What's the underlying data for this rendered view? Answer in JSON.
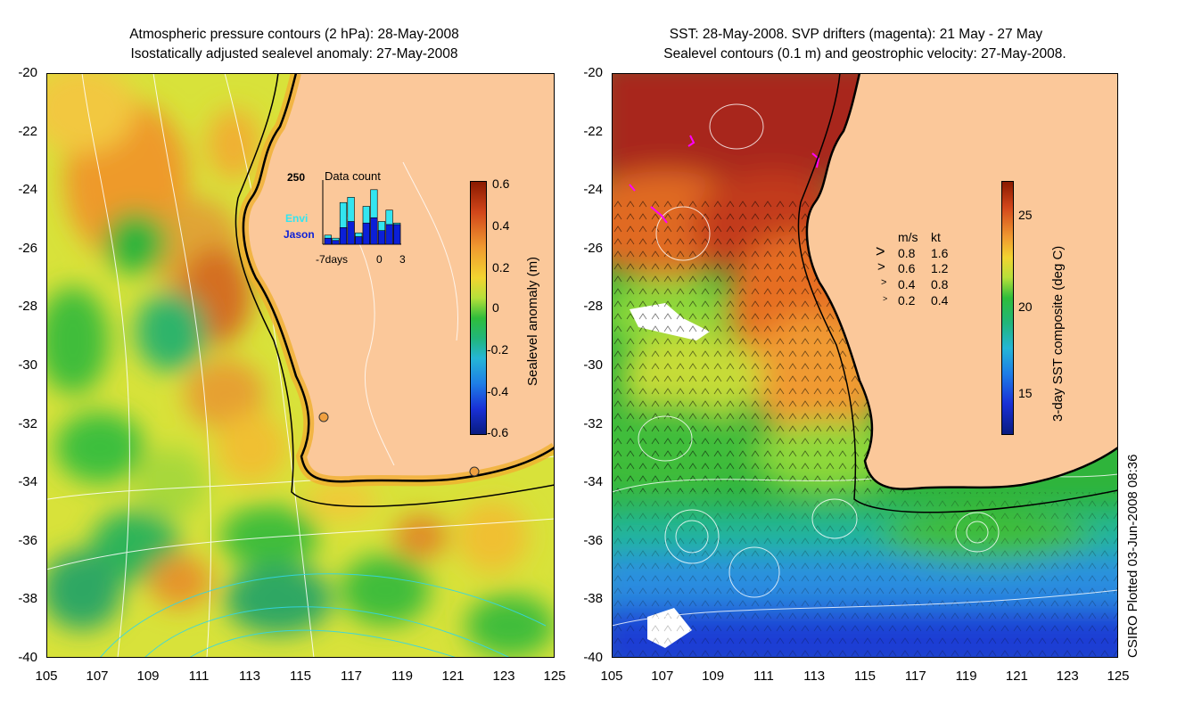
{
  "left_panel": {
    "title_line1": "Atmospheric pressure contours (2 hPa): 28-May-2008",
    "title_line2": "Isostatically adjusted sealevel anomaly: 27-May-2008",
    "colorbar": {
      "label": "Sealevel anomaly (m)",
      "ticks": [
        "0.6",
        "0.4",
        "0.2",
        "0",
        "-0.2",
        "-0.4",
        "-0.6"
      ]
    },
    "inset": {
      "title": "Data count",
      "max_label": "250",
      "series_envi": "Envi",
      "series_jason": "Jason",
      "xlabel_left": "-7days",
      "xlabel_mid": "0",
      "xlabel_right": "3"
    }
  },
  "right_panel": {
    "title_line1": "SST: 28-May-2008. SVP drifters (magenta): 21 May - 27 May",
    "title_line2": "Sealevel contours (0.1 m) and geostrophic velocity: 27-May-2008.",
    "colorbar": {
      "label": "3-day SST composite (deg C)",
      "ticks": [
        "25",
        "20",
        "15"
      ]
    },
    "speed_legend": {
      "header_ms": "m/s",
      "header_kt": "kt",
      "rows": [
        {
          "ms": "0.8",
          "kt": "1.6"
        },
        {
          "ms": "0.6",
          "kt": "1.2"
        },
        {
          "ms": "0.4",
          "kt": "0.8"
        },
        {
          "ms": "0.2",
          "kt": "0.4"
        }
      ]
    }
  },
  "axes": {
    "lat_ticks": [
      "-20",
      "-22",
      "-24",
      "-26",
      "-28",
      "-30",
      "-32",
      "-34",
      "-36",
      "-38",
      "-40"
    ],
    "lon_ticks": [
      "105",
      "107",
      "109",
      "111",
      "113",
      "115",
      "117",
      "119",
      "121",
      "123",
      "125"
    ]
  },
  "credit": "CSIRO Plotted 03-Jun-2008 08:36",
  "colors": {
    "land": "#fbc89a",
    "coast": "#000000",
    "contour": "#ffffff",
    "drifter": "#ff00ff",
    "envi_bar": "#33e5f0",
    "jason_bar": "#0b1fd8"
  }
}
